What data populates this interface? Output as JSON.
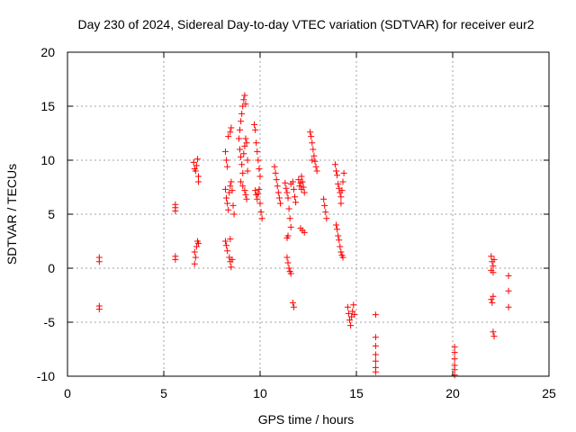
{
  "chart_data": {
    "type": "scatter",
    "title": "Day 230 of 2024, Sidereal Day-to-day VTEC variation (SDTVAR) for receiver eur2",
    "xlabel": "GPS time / hours",
    "ylabel": "SDTVAR / TECUs",
    "xlim": [
      0,
      25
    ],
    "ylim": [
      -10,
      20
    ],
    "xticks": [
      0,
      5,
      10,
      15,
      20,
      25
    ],
    "yticks": [
      -10,
      -5,
      0,
      5,
      10,
      15,
      20
    ],
    "grid": true,
    "marker": "plus",
    "color": "#ff0000",
    "series": [
      {
        "name": "SDTVAR",
        "points": [
          [
            1.65,
            1.0
          ],
          [
            1.65,
            0.6
          ],
          [
            1.65,
            -3.5
          ],
          [
            1.65,
            -3.8
          ],
          [
            5.6,
            5.9
          ],
          [
            5.6,
            5.6
          ],
          [
            5.6,
            5.3
          ],
          [
            5.6,
            1.1
          ],
          [
            5.6,
            0.8
          ],
          [
            6.55,
            9.8
          ],
          [
            6.6,
            9.2
          ],
          [
            6.65,
            9.0
          ],
          [
            6.7,
            9.5
          ],
          [
            6.75,
            10.1
          ],
          [
            6.8,
            8.5
          ],
          [
            6.8,
            8.0
          ],
          [
            6.6,
            1.5
          ],
          [
            6.65,
            1.0
          ],
          [
            6.6,
            0.4
          ],
          [
            6.7,
            2.0
          ],
          [
            6.75,
            2.5
          ],
          [
            6.8,
            2.3
          ],
          [
            8.2,
            10.8
          ],
          [
            8.25,
            10.0
          ],
          [
            8.3,
            9.4
          ],
          [
            8.35,
            12.2
          ],
          [
            8.45,
            12.6
          ],
          [
            8.5,
            13.0
          ],
          [
            8.2,
            7.3
          ],
          [
            8.25,
            6.5
          ],
          [
            8.3,
            6.0
          ],
          [
            8.35,
            5.4
          ],
          [
            8.4,
            7.0
          ],
          [
            8.45,
            7.6
          ],
          [
            8.5,
            8.0
          ],
          [
            8.55,
            7.2
          ],
          [
            8.6,
            5.8
          ],
          [
            8.65,
            5.0
          ],
          [
            8.2,
            2.5
          ],
          [
            8.25,
            2.1
          ],
          [
            8.3,
            1.6
          ],
          [
            8.4,
            1.0
          ],
          [
            8.45,
            0.6
          ],
          [
            8.5,
            0.1
          ],
          [
            8.55,
            0.8
          ],
          [
            8.45,
            2.7
          ],
          [
            8.9,
            12.0
          ],
          [
            8.95,
            12.8
          ],
          [
            9.0,
            13.6
          ],
          [
            9.05,
            14.3
          ],
          [
            9.1,
            15.0
          ],
          [
            9.15,
            15.6
          ],
          [
            9.2,
            16.0
          ],
          [
            9.25,
            15.2
          ],
          [
            8.95,
            11.0
          ],
          [
            9.0,
            10.3
          ],
          [
            9.05,
            9.6
          ],
          [
            9.1,
            8.8
          ],
          [
            9.15,
            10.6
          ],
          [
            9.2,
            11.3
          ],
          [
            9.25,
            12.0
          ],
          [
            9.3,
            11.6
          ],
          [
            9.35,
            10.0
          ],
          [
            9.35,
            9.0
          ],
          [
            9.0,
            8.0
          ],
          [
            9.1,
            7.6
          ],
          [
            9.2,
            7.2
          ],
          [
            9.25,
            6.8
          ],
          [
            9.3,
            6.4
          ],
          [
            9.7,
            13.3
          ],
          [
            9.75,
            12.8
          ],
          [
            9.8,
            11.6
          ],
          [
            9.85,
            10.8
          ],
          [
            9.9,
            10.0
          ],
          [
            9.95,
            9.2
          ],
          [
            10.0,
            8.5
          ],
          [
            9.75,
            7.2
          ],
          [
            9.8,
            6.8
          ],
          [
            9.85,
            6.4
          ],
          [
            9.9,
            6.9
          ],
          [
            9.95,
            7.3
          ],
          [
            10.0,
            6.0
          ],
          [
            10.05,
            5.2
          ],
          [
            10.1,
            4.6
          ],
          [
            10.75,
            9.4
          ],
          [
            10.8,
            8.8
          ],
          [
            10.85,
            8.2
          ],
          [
            10.9,
            7.6
          ],
          [
            10.95,
            7.0
          ],
          [
            11.0,
            6.5
          ],
          [
            11.05,
            6.0
          ],
          [
            11.3,
            7.9
          ],
          [
            11.35,
            7.4
          ],
          [
            11.4,
            7.0
          ],
          [
            11.45,
            6.5
          ],
          [
            11.5,
            5.5
          ],
          [
            11.55,
            4.6
          ],
          [
            11.6,
            3.8
          ],
          [
            11.45,
            3.0
          ],
          [
            11.4,
            2.8
          ],
          [
            11.6,
            7.8
          ],
          [
            11.7,
            8.0
          ],
          [
            11.75,
            7.3
          ],
          [
            11.8,
            6.6
          ],
          [
            11.85,
            6.1
          ],
          [
            11.4,
            1.0
          ],
          [
            11.45,
            0.5
          ],
          [
            11.5,
            0.0
          ],
          [
            11.55,
            -0.3
          ],
          [
            11.6,
            -0.5
          ],
          [
            11.7,
            -3.2
          ],
          [
            11.75,
            -3.6
          ],
          [
            12.0,
            8.2
          ],
          [
            12.05,
            7.6
          ],
          [
            12.1,
            7.9
          ],
          [
            12.15,
            7.3
          ],
          [
            12.2,
            8.0
          ],
          [
            12.25,
            7.5
          ],
          [
            12.3,
            7.0
          ],
          [
            12.15,
            8.5
          ],
          [
            12.1,
            3.7
          ],
          [
            12.2,
            3.5
          ],
          [
            12.3,
            3.3
          ],
          [
            12.6,
            12.6
          ],
          [
            12.65,
            12.2
          ],
          [
            12.7,
            11.6
          ],
          [
            12.75,
            11.0
          ],
          [
            12.8,
            10.4
          ],
          [
            12.85,
            9.9
          ],
          [
            12.9,
            9.4
          ],
          [
            12.95,
            9.0
          ],
          [
            12.7,
            10.0
          ],
          [
            13.3,
            6.4
          ],
          [
            13.35,
            5.8
          ],
          [
            13.4,
            5.2
          ],
          [
            13.45,
            4.6
          ],
          [
            13.9,
            9.6
          ],
          [
            13.95,
            9.0
          ],
          [
            14.0,
            8.6
          ],
          [
            14.05,
            7.8
          ],
          [
            14.1,
            7.4
          ],
          [
            14.15,
            7.0
          ],
          [
            14.2,
            6.6
          ],
          [
            14.25,
            7.2
          ],
          [
            14.3,
            8.0
          ],
          [
            14.35,
            8.8
          ],
          [
            14.2,
            6.0
          ],
          [
            13.95,
            4.0
          ],
          [
            14.0,
            3.6
          ],
          [
            14.05,
            3.0
          ],
          [
            14.1,
            2.6
          ],
          [
            14.15,
            2.0
          ],
          [
            14.2,
            1.5
          ],
          [
            14.25,
            1.2
          ],
          [
            14.3,
            1.0
          ],
          [
            14.55,
            -3.6
          ],
          [
            14.6,
            -4.2
          ],
          [
            14.65,
            -4.8
          ],
          [
            14.7,
            -5.3
          ],
          [
            14.75,
            -4.5
          ],
          [
            14.8,
            -4.0
          ],
          [
            14.85,
            -3.4
          ],
          [
            14.9,
            -4.3
          ],
          [
            16.0,
            -4.3
          ],
          [
            16.0,
            -6.4
          ],
          [
            16.0,
            -7.2
          ],
          [
            16.0,
            -8.0
          ],
          [
            16.0,
            -8.6
          ],
          [
            16.0,
            -9.2
          ],
          [
            16.0,
            -9.6
          ],
          [
            20.1,
            -7.3
          ],
          [
            20.1,
            -7.8
          ],
          [
            20.1,
            -8.4
          ],
          [
            20.1,
            -9.0
          ],
          [
            20.1,
            -9.4
          ],
          [
            20.1,
            -9.9
          ],
          [
            22.0,
            1.1
          ],
          [
            22.05,
            0.6
          ],
          [
            22.1,
            0.2
          ],
          [
            22.0,
            -0.2
          ],
          [
            22.1,
            -0.4
          ],
          [
            22.15,
            0.8
          ],
          [
            22.0,
            -2.9
          ],
          [
            22.05,
            -3.2
          ],
          [
            22.1,
            -2.6
          ],
          [
            22.1,
            -5.9
          ],
          [
            22.15,
            -6.3
          ],
          [
            22.9,
            -0.7
          ],
          [
            22.9,
            -2.1
          ],
          [
            22.9,
            -3.6
          ]
        ]
      }
    ]
  }
}
